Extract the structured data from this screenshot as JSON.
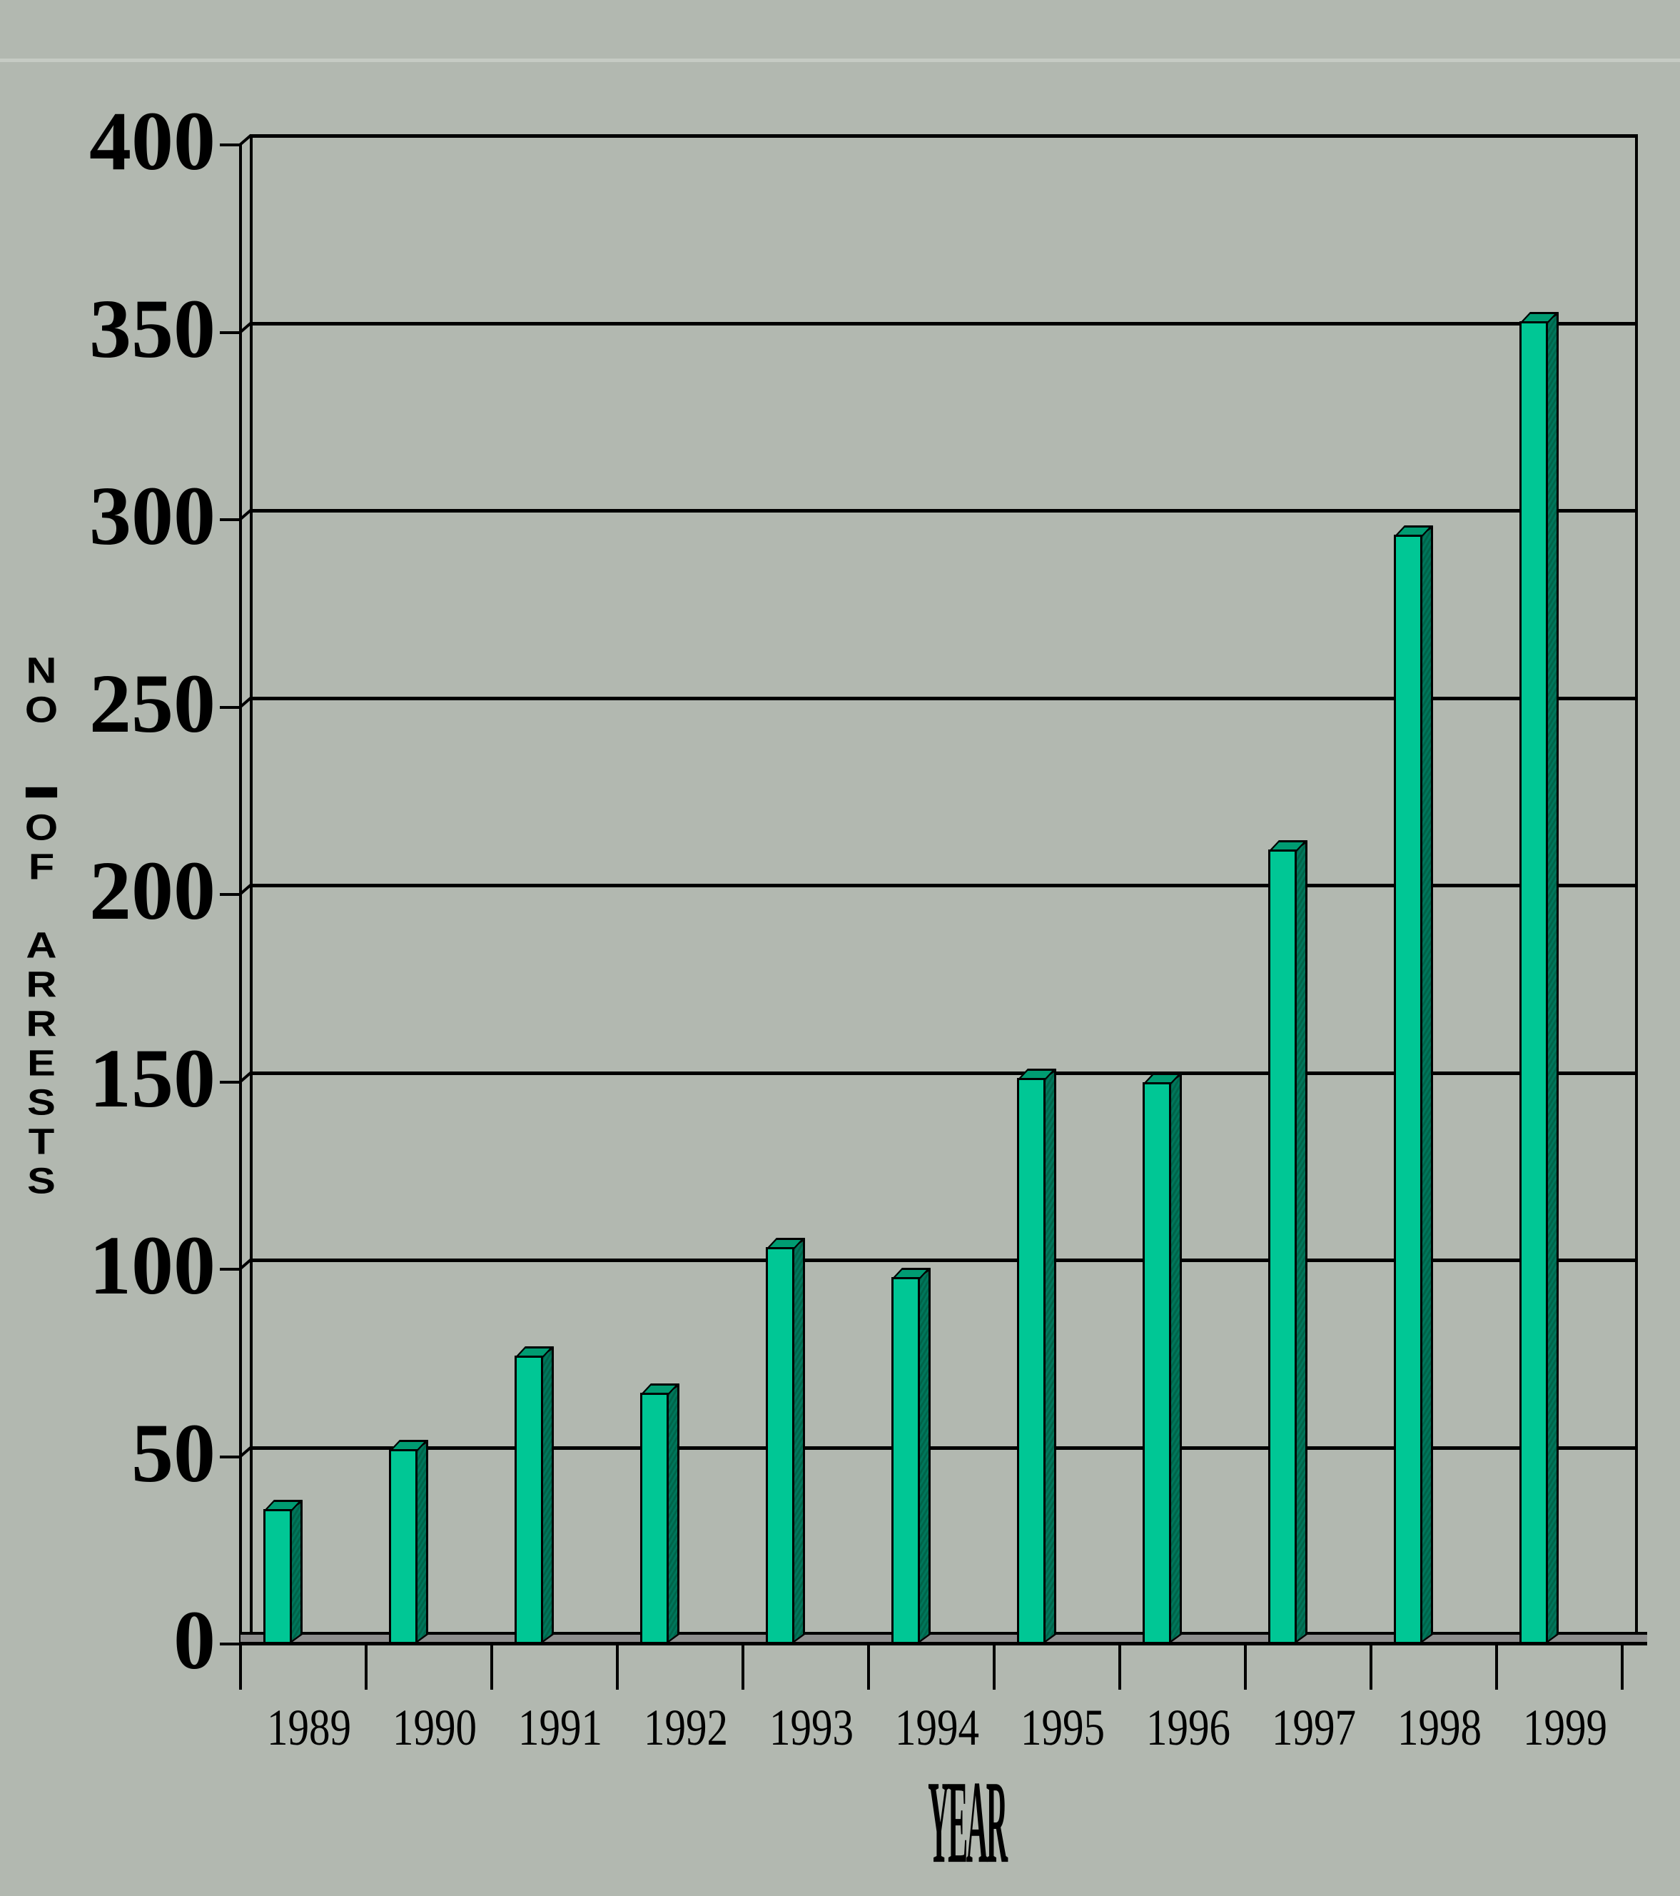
{
  "vertical_axis_title": {
    "text": "NO. OF ARRESTS",
    "stacked_chars": [
      "N",
      "O",
      ".",
      "",
      "O",
      "F",
      "",
      "A",
      "R",
      "R",
      "E",
      "S",
      "T",
      "S"
    ]
  },
  "chart_data": {
    "type": "bar",
    "style": "3d-column",
    "title": "",
    "categories": [
      "1989",
      "1990",
      "1991",
      "1992",
      "1993",
      "1994",
      "1995",
      "1996",
      "1997",
      "1998",
      "1999"
    ],
    "values": [
      36,
      52,
      77,
      67,
      106,
      98,
      151,
      150,
      212,
      296,
      353
    ],
    "xlabel": "YEAR",
    "ylabel": "NO. OF ARRESTS",
    "ylim": [
      0,
      400
    ],
    "yticks": [
      0,
      50,
      100,
      150,
      200,
      250,
      300,
      350,
      400
    ],
    "grid": true,
    "legend": false,
    "colors": {
      "bar_front": "#00c795",
      "bar_top": "#009c72",
      "bar_side": "#00654a",
      "background": "#b2b8b0",
      "floor": "#8e8e8e",
      "line": "#000000"
    }
  }
}
